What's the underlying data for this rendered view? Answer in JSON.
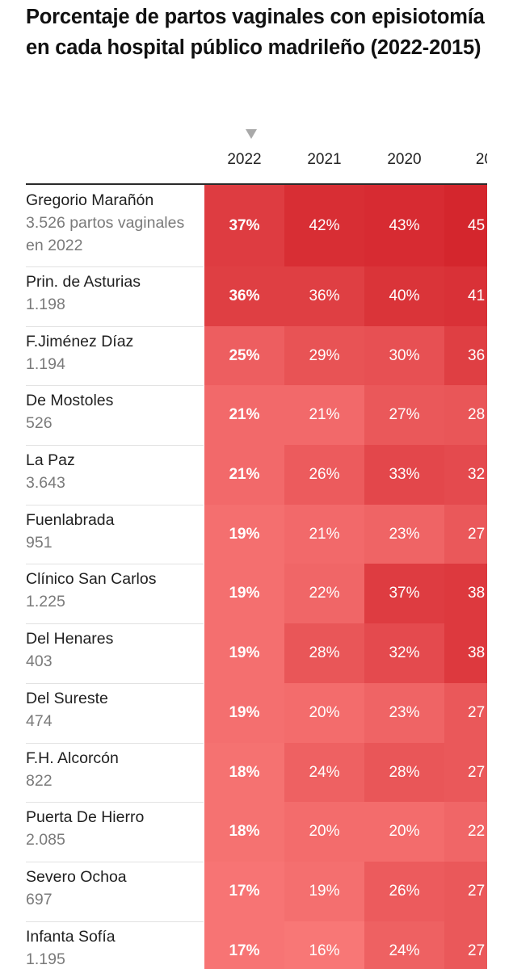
{
  "title": "Porcentaje de partos vaginales con episiotomía en cada hospital público madrileño (2022-2015)",
  "chart_data": {
    "type": "table",
    "title": "Porcentaje de partos vaginales con episiotomía en cada hospital público madrileño (2022-2015)",
    "sorted_column": "2022",
    "columns": [
      "2022",
      "2021",
      "2020",
      "20"
    ],
    "rows": [
      {
        "name": "Gregorio Marañón",
        "sub": "3.526 partos vaginales en 2022",
        "values": [
          37,
          42,
          43,
          45
        ],
        "labels": [
          "37%",
          "42%",
          "43%",
          "45"
        ]
      },
      {
        "name": "Prin. de Asturias",
        "sub": "1.198",
        "values": [
          36,
          36,
          40,
          41
        ],
        "labels": [
          "36%",
          "36%",
          "40%",
          "41"
        ]
      },
      {
        "name": "F.Jiménez Díaz",
        "sub": "1.194",
        "values": [
          25,
          29,
          30,
          36
        ],
        "labels": [
          "25%",
          "29%",
          "30%",
          "36"
        ]
      },
      {
        "name": "De Mostoles",
        "sub": "526",
        "values": [
          21,
          21,
          27,
          28
        ],
        "labels": [
          "21%",
          "21%",
          "27%",
          "28"
        ]
      },
      {
        "name": "La Paz",
        "sub": "3.643",
        "values": [
          21,
          26,
          33,
          32
        ],
        "labels": [
          "21%",
          "26%",
          "33%",
          "32"
        ]
      },
      {
        "name": "Fuenlabrada",
        "sub": "951",
        "values": [
          19,
          21,
          23,
          27
        ],
        "labels": [
          "19%",
          "21%",
          "23%",
          "27"
        ]
      },
      {
        "name": "Clínico San Carlos",
        "sub": "1.225",
        "values": [
          19,
          22,
          37,
          38
        ],
        "labels": [
          "19%",
          "22%",
          "37%",
          "38"
        ]
      },
      {
        "name": "Del Henares",
        "sub": "403",
        "values": [
          19,
          28,
          32,
          38
        ],
        "labels": [
          "19%",
          "28%",
          "32%",
          "38"
        ]
      },
      {
        "name": "Del Sureste",
        "sub": "474",
        "values": [
          19,
          20,
          23,
          27
        ],
        "labels": [
          "19%",
          "20%",
          "23%",
          "27"
        ]
      },
      {
        "name": "F.H. Alcorcón",
        "sub": "822",
        "values": [
          18,
          24,
          28,
          27
        ],
        "labels": [
          "18%",
          "24%",
          "28%",
          "27"
        ]
      },
      {
        "name": "Puerta De Hierro",
        "sub": "2.085",
        "values": [
          18,
          20,
          20,
          22
        ],
        "labels": [
          "18%",
          "20%",
          "20%",
          "22"
        ]
      },
      {
        "name": "Severo Ochoa",
        "sub": "697",
        "values": [
          17,
          19,
          26,
          27
        ],
        "labels": [
          "17%",
          "19%",
          "26%",
          "27"
        ]
      },
      {
        "name": "Infanta Sofía",
        "sub": "1.195",
        "values": [
          17,
          16,
          24,
          27
        ],
        "labels": [
          "17%",
          "16%",
          "24%",
          "27"
        ]
      }
    ]
  },
  "colors": {
    "low": "#f97a79",
    "high": "#d3232a",
    "text_on_cell": "#ffffff",
    "header_rule": "#2a2a2a",
    "sub_text": "#7a7a7a"
  }
}
